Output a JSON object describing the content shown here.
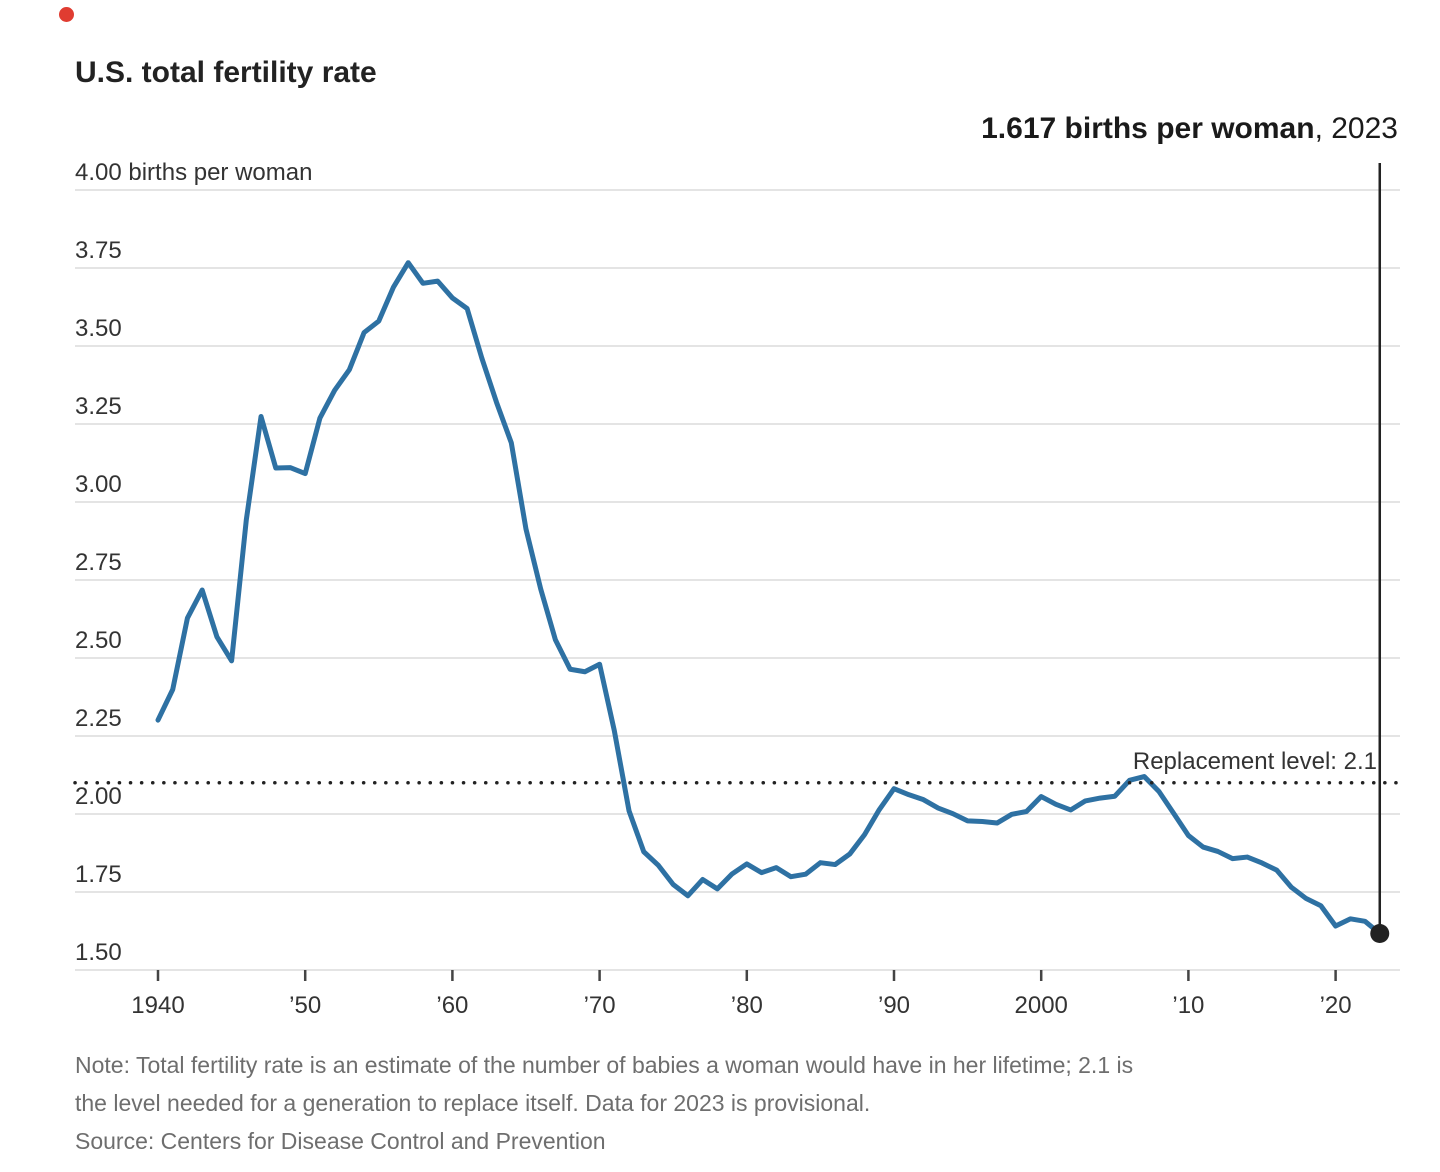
{
  "title": "U.S. total fertility rate",
  "annotation": {
    "value_bold": "1.617 births per woman",
    "suffix": ", 2023"
  },
  "notes": {
    "line1": "Note: Total fertility rate is an estimate of the number of babies a woman would have in her lifetime; 2.1 is",
    "line2": "the level needed for a generation to replace itself. Data for 2023 is provisional.",
    "source": "Source: Centers for Disease Control and Prevention"
  },
  "colors": {
    "line": "#2E71A3",
    "grid": "#E4E4E4",
    "tick": "#444444",
    "axis_text": "#333333",
    "marker": "#222222",
    "note_text": "#6E6E6E",
    "red_dot": "#E03C31"
  },
  "chart_data": {
    "type": "line",
    "title": "U.S. total fertility rate",
    "ylabel": "births per woman",
    "xlabel": "",
    "grid": "horizontal",
    "legend": "none",
    "xlim": [
      1940,
      2023
    ],
    "ylim": [
      1.5,
      4.0
    ],
    "x": [
      1940,
      1941,
      1942,
      1943,
      1944,
      1945,
      1946,
      1947,
      1948,
      1949,
      1950,
      1951,
      1952,
      1953,
      1954,
      1955,
      1956,
      1957,
      1958,
      1959,
      1960,
      1961,
      1962,
      1963,
      1964,
      1965,
      1966,
      1967,
      1968,
      1969,
      1970,
      1971,
      1972,
      1973,
      1974,
      1975,
      1976,
      1977,
      1978,
      1979,
      1980,
      1981,
      1982,
      1983,
      1984,
      1985,
      1986,
      1987,
      1988,
      1989,
      1990,
      1991,
      1992,
      1993,
      1994,
      1995,
      1996,
      1997,
      1998,
      1999,
      2000,
      2001,
      2002,
      2003,
      2004,
      2005,
      2006,
      2007,
      2008,
      2009,
      2010,
      2011,
      2012,
      2013,
      2014,
      2015,
      2016,
      2017,
      2018,
      2019,
      2020,
      2021,
      2022,
      2023
    ],
    "values": [
      2.301,
      2.399,
      2.628,
      2.718,
      2.568,
      2.491,
      2.943,
      3.274,
      3.109,
      3.11,
      3.091,
      3.269,
      3.358,
      3.424,
      3.543,
      3.58,
      3.689,
      3.767,
      3.701,
      3.708,
      3.654,
      3.62,
      3.461,
      3.319,
      3.19,
      2.913,
      2.721,
      2.558,
      2.464,
      2.456,
      2.48,
      2.267,
      2.01,
      1.879,
      1.835,
      1.774,
      1.738,
      1.79,
      1.76,
      1.808,
      1.84,
      1.812,
      1.828,
      1.799,
      1.807,
      1.844,
      1.838,
      1.872,
      1.934,
      2.014,
      2.081,
      2.062,
      2.046,
      2.019,
      2.001,
      1.978,
      1.976,
      1.971,
      1.999,
      2.008,
      2.056,
      2.031,
      2.013,
      2.042,
      2.051,
      2.057,
      2.108,
      2.12,
      2.072,
      2.002,
      1.931,
      1.894,
      1.88,
      1.857,
      1.862,
      1.843,
      1.82,
      1.765,
      1.729,
      1.706,
      1.641,
      1.664,
      1.656,
      1.617
    ],
    "yticks": [
      {
        "value": 4.0,
        "label": "4.00 births per woman"
      },
      {
        "value": 3.75,
        "label": "3.75"
      },
      {
        "value": 3.5,
        "label": "3.50"
      },
      {
        "value": 3.25,
        "label": "3.25"
      },
      {
        "value": 3.0,
        "label": "3.00"
      },
      {
        "value": 2.75,
        "label": "2.75"
      },
      {
        "value": 2.5,
        "label": "2.50"
      },
      {
        "value": 2.25,
        "label": "2.25"
      },
      {
        "value": 2.0,
        "label": "2.00"
      },
      {
        "value": 1.75,
        "label": "1.75"
      },
      {
        "value": 1.5,
        "label": "1.50"
      }
    ],
    "xticks": [
      {
        "year": 1940,
        "label": "1940"
      },
      {
        "year": 1950,
        "label": "’50"
      },
      {
        "year": 1960,
        "label": "’60"
      },
      {
        "year": 1970,
        "label": "’70"
      },
      {
        "year": 1980,
        "label": "’80"
      },
      {
        "year": 1990,
        "label": "’90"
      },
      {
        "year": 2000,
        "label": "2000"
      },
      {
        "year": 2010,
        "label": "’10"
      },
      {
        "year": 2020,
        "label": "’20"
      }
    ],
    "reference_line": {
      "value": 2.1,
      "label": "Replacement level: 2.1",
      "style": "dotted"
    },
    "end_marker": {
      "year": 2023,
      "value": 1.617
    }
  }
}
